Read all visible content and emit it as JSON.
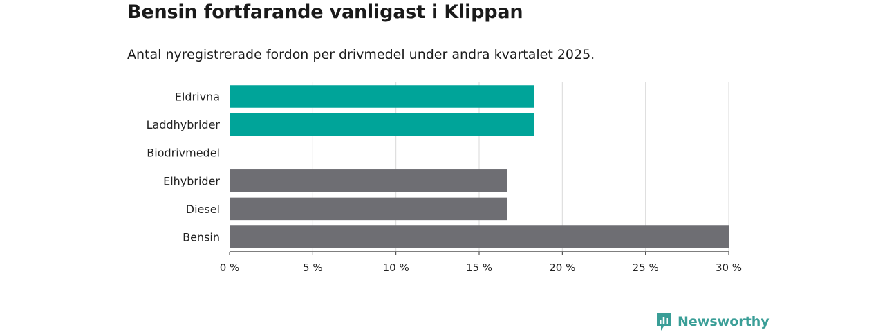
{
  "header": {
    "title": "Bensin fortfarande vanligast i Klippan",
    "subtitle": "Antal nyregistrerade fordon per drivmedel under andra kvartalet 2025."
  },
  "brand": {
    "name": "Newsworthy",
    "icon": "newsworthy-logo-icon",
    "color": "#3a9e97"
  },
  "chart_data": {
    "type": "bar",
    "orientation": "horizontal",
    "categories": [
      "Eldrivna",
      "Laddhybrider",
      "Biodrivmedel",
      "Elhybrider",
      "Diesel",
      "Bensin"
    ],
    "values": [
      18.3,
      18.3,
      0,
      16.7,
      16.7,
      30.0
    ],
    "colors": [
      "#00a499",
      "#00a499",
      "#6e6e73",
      "#6e6e73",
      "#6e6e73",
      "#6e6e73"
    ],
    "xlim": [
      0,
      30
    ],
    "xticks": [
      0,
      5,
      10,
      15,
      20,
      25,
      30
    ],
    "xtick_labels": [
      "0 %",
      "5 %",
      "10 %",
      "15 %",
      "20 %",
      "25 %",
      "30 %"
    ],
    "grid": "vertical",
    "title": "Bensin fortfarande vanligast i Klippan",
    "subtitle": "Antal nyregistrerade fordon per drivmedel under andra kvartalet 2025."
  }
}
